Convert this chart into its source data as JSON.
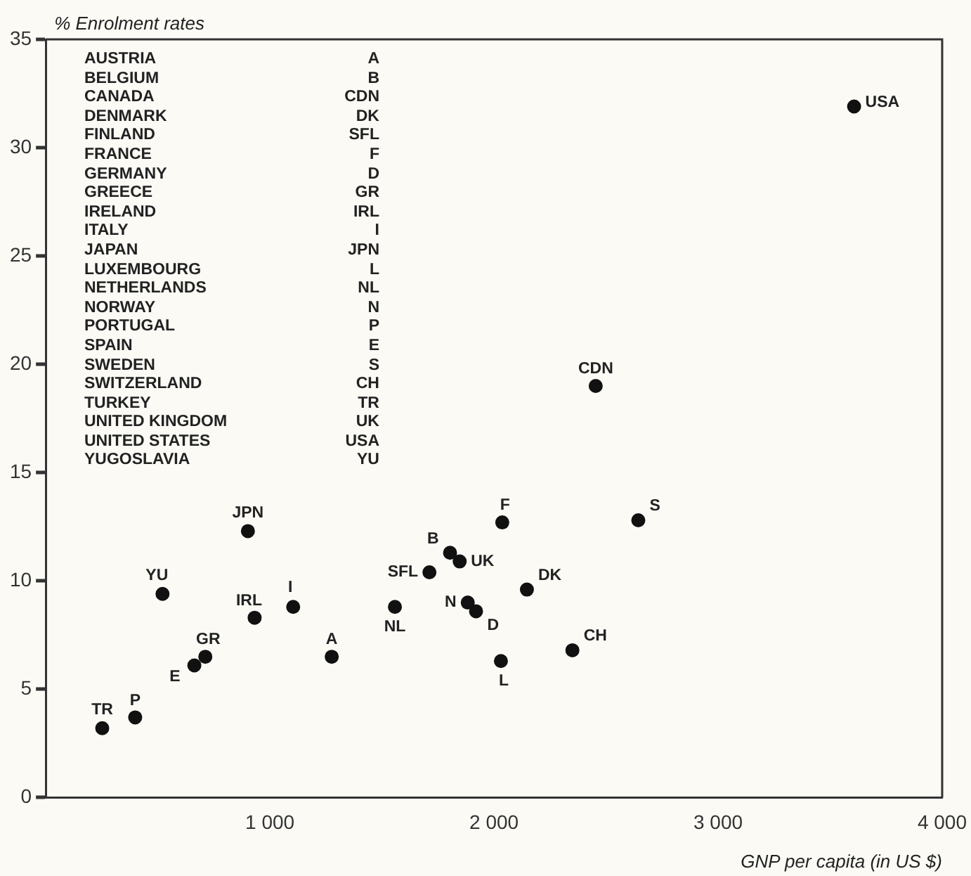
{
  "chart_data": {
    "type": "scatter",
    "ylabel": "% Enrolment rates",
    "xlabel": "GNP per capita (in US $)",
    "xlim": [
      0,
      4000
    ],
    "xticks": [
      {
        "value": 1000,
        "label": "1 000"
      },
      {
        "value": 2000,
        "label": "2 000"
      },
      {
        "value": 3000,
        "label": "3 000"
      },
      {
        "value": 4000,
        "label": "4 000"
      }
    ],
    "ylim": [
      0,
      35
    ],
    "yticks": [
      0,
      5,
      10,
      15,
      20,
      25,
      30,
      35
    ],
    "grid": false,
    "legend": false,
    "marker": "circle",
    "series": [
      {
        "color": "#111111",
        "x": [
          1276,
          1804,
          2454,
          2147,
          1712,
          2037,
          1920,
          712,
          932,
          1104,
          902,
          2031,
          1558,
          1883,
          399,
          663,
          2644,
          2350,
          252,
          1847,
          3607,
          521
        ],
        "values": [
          6.5,
          11.3,
          19.0,
          9.6,
          10.4,
          12.7,
          8.6,
          6.5,
          8.3,
          8.8,
          12.3,
          6.3,
          8.8,
          9.0,
          3.7,
          6.1,
          12.8,
          6.8,
          3.2,
          10.9,
          31.9,
          9.4
        ]
      }
    ],
    "annotations": [
      {
        "text": "A",
        "x": 1276,
        "y": 6.5
      },
      {
        "text": "B",
        "x": 1804,
        "y": 11.3
      },
      {
        "text": "CDN",
        "x": 2454,
        "y": 19.0
      },
      {
        "text": "DK",
        "x": 2147,
        "y": 9.6
      },
      {
        "text": "SFL",
        "x": 1712,
        "y": 10.4
      },
      {
        "text": "F",
        "x": 2037,
        "y": 12.7
      },
      {
        "text": "D",
        "x": 1920,
        "y": 8.6
      },
      {
        "text": "GR",
        "x": 712,
        "y": 6.5
      },
      {
        "text": "IRL",
        "x": 932,
        "y": 8.3
      },
      {
        "text": "I",
        "x": 1104,
        "y": 8.8
      },
      {
        "text": "JPN",
        "x": 902,
        "y": 12.3
      },
      {
        "text": "L",
        "x": 2031,
        "y": 6.3
      },
      {
        "text": "NL",
        "x": 1558,
        "y": 8.8
      },
      {
        "text": "N",
        "x": 1883,
        "y": 9.0
      },
      {
        "text": "P",
        "x": 399,
        "y": 3.7
      },
      {
        "text": "E",
        "x": 663,
        "y": 6.1
      },
      {
        "text": "S",
        "x": 2644,
        "y": 12.8
      },
      {
        "text": "CH",
        "x": 2350,
        "y": 6.8
      },
      {
        "text": "TR",
        "x": 252,
        "y": 3.2
      },
      {
        "text": "UK",
        "x": 1847,
        "y": 10.9
      },
      {
        "text": "USA",
        "x": 3607,
        "y": 31.9
      },
      {
        "text": "YU",
        "x": 521,
        "y": 9.4
      },
      "AUSTRIA A",
      "BELGIUM B",
      "CANADA CDN",
      "DENMARK DK",
      "FINLAND SFL",
      "FRANCE F",
      "GERMANY D",
      "GREECE GR",
      "IRELAND IRL",
      "ITALY I",
      "JAPAN JPN",
      "LUXEMBOURG L",
      "NETHERLANDS NL",
      "NORWAY N",
      "PORTUGAL P",
      "SPAIN E",
      "SWEDEN S",
      "SWITZERLAND CH",
      "TURKEY TR",
      "UNITED KINGDOM UK",
      "UNITED STATES USA",
      "YUGOSLAVIA YU"
    ]
  }
}
